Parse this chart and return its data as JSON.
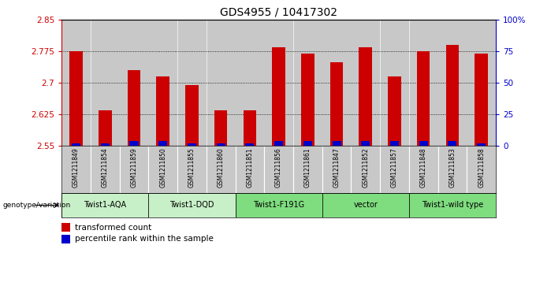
{
  "title": "GDS4955 / 10417302",
  "samples": [
    "GSM1211849",
    "GSM1211854",
    "GSM1211859",
    "GSM1211850",
    "GSM1211855",
    "GSM1211860",
    "GSM1211851",
    "GSM1211856",
    "GSM1211861",
    "GSM1211847",
    "GSM1211852",
    "GSM1211857",
    "GSM1211848",
    "GSM1211853",
    "GSM1211858"
  ],
  "red_values": [
    2.775,
    2.635,
    2.73,
    2.715,
    2.695,
    2.635,
    2.635,
    2.785,
    2.77,
    2.75,
    2.785,
    2.715,
    2.775,
    2.79,
    2.77
  ],
  "blue_pct": [
    2,
    2,
    4,
    4,
    2,
    2,
    2,
    4,
    4,
    4,
    4,
    4,
    4,
    4,
    2
  ],
  "ymin": 2.55,
  "ymax": 2.85,
  "yticks": [
    2.55,
    2.625,
    2.7,
    2.775,
    2.85
  ],
  "ytick_labels": [
    "2.55",
    "2.625",
    "2.7",
    "2.775",
    "2.85"
  ],
  "right_yticks": [
    0,
    25,
    50,
    75,
    100
  ],
  "right_ytick_labels": [
    "0",
    "25",
    "50",
    "75",
    "100%"
  ],
  "groups": [
    {
      "label": "Twist1-AQA",
      "start": 0,
      "end": 3,
      "color": "#c8f0c8"
    },
    {
      "label": "Twist1-DQD",
      "start": 3,
      "end": 6,
      "color": "#c8f0c8"
    },
    {
      "label": "Twist1-F191G",
      "start": 6,
      "end": 9,
      "color": "#7fdd7f"
    },
    {
      "label": "vector",
      "start": 9,
      "end": 12,
      "color": "#7fdd7f"
    },
    {
      "label": "Twist1-wild type",
      "start": 12,
      "end": 15,
      "color": "#7fdd7f"
    }
  ],
  "bar_color_red": "#cc0000",
  "bar_color_blue": "#0000cc",
  "bg_color": "#ffffff",
  "left_axis_color": "#cc0000",
  "right_axis_color": "#0000cc",
  "sample_bg": "#c8c8c8",
  "genotype_label": "genotype/variation",
  "legend_red": "transformed count",
  "legend_blue": "percentile rank within the sample"
}
